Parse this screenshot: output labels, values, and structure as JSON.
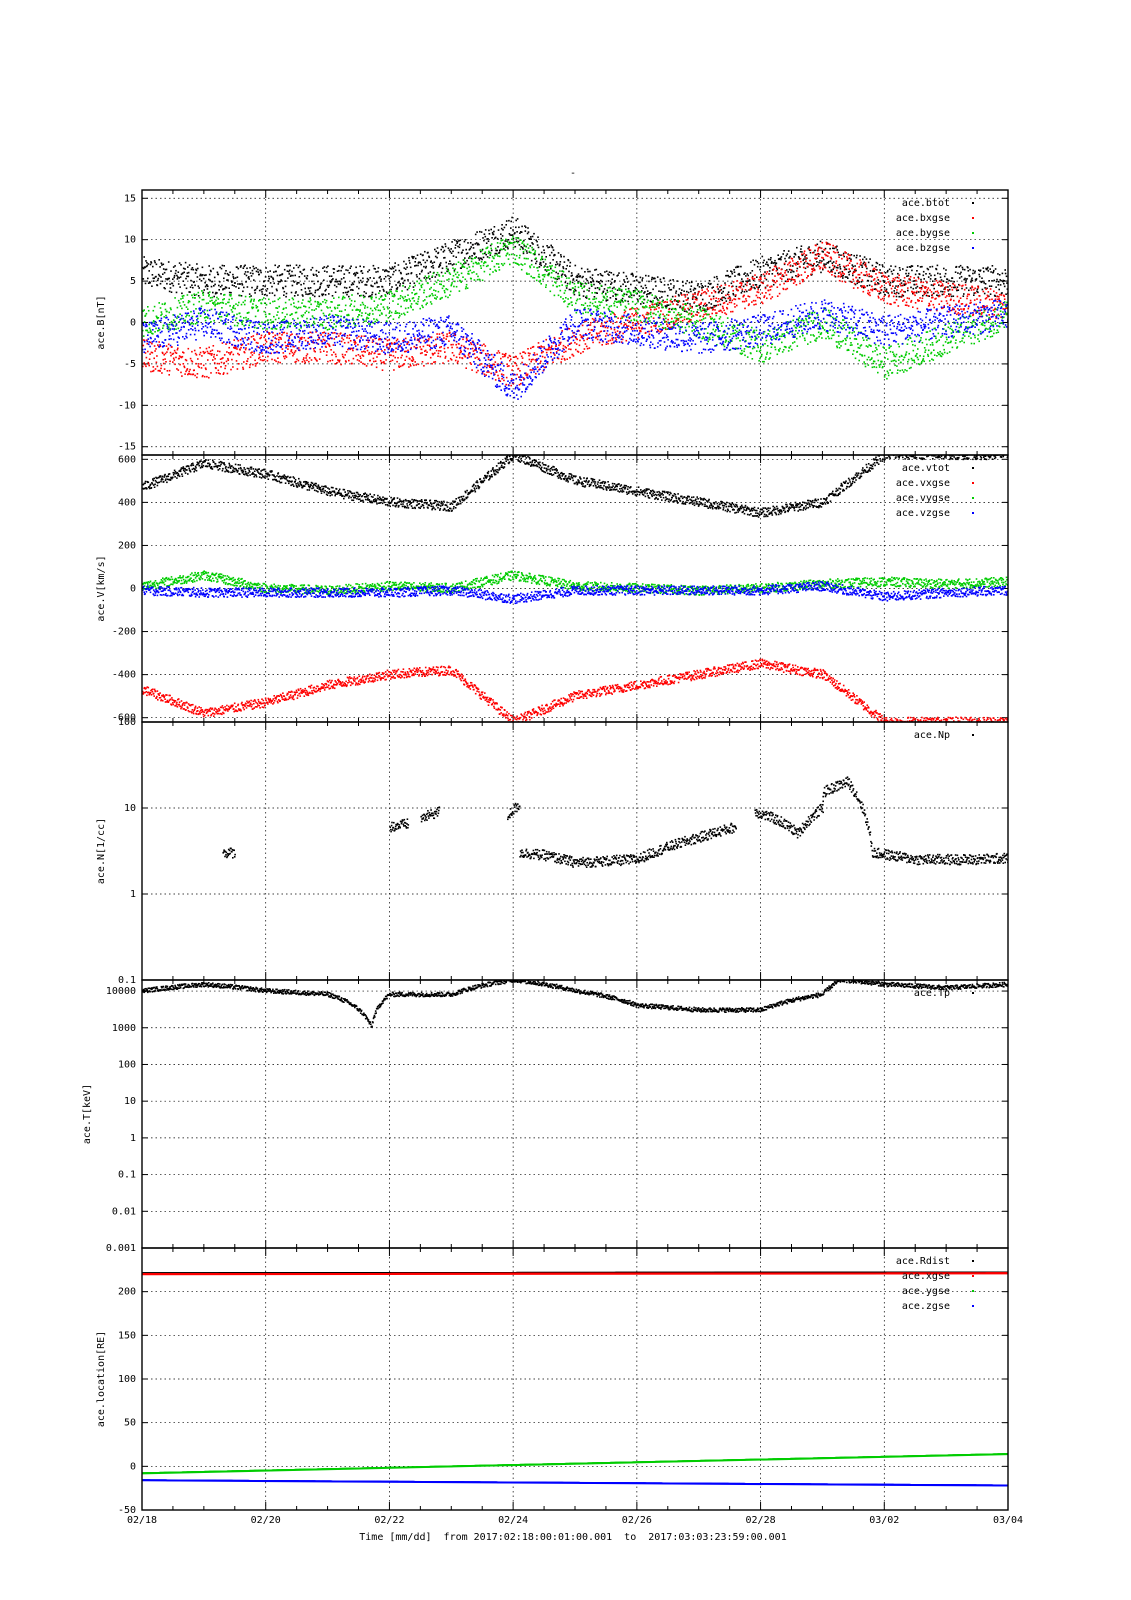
{
  "figure": {
    "title": "-",
    "xlabel": "Time [mm/dd]  from 2017:02:18:00:01:00.001  to  2017:03:03:23:59:00.001",
    "x_tick_labels": [
      "02/18",
      "02/20",
      "02/22",
      "02/24",
      "02/26",
      "02/28",
      "03/02",
      "03/04"
    ]
  },
  "chart_data": [
    {
      "type": "scatter",
      "ylabel": "ace.B[nT]",
      "ylim": [
        -16,
        16
      ],
      "yscale": "linear",
      "y_ticks": [
        -15,
        -10,
        -5,
        0,
        5,
        10,
        15
      ],
      "y_tick_labels": [
        "-15",
        "-10",
        "-5",
        "0",
        "5",
        "10",
        "15"
      ],
      "legend_position": "top-right",
      "x": [
        "02/18",
        "02/19",
        "02/20",
        "02/21",
        "02/22",
        "02/23",
        "02/24",
        "02/25",
        "02/26",
        "02/27",
        "02/28",
        "03/01",
        "03/02",
        "03/03",
        "03/04"
      ],
      "series": [
        {
          "name": "ace.btot",
          "color": "#000000",
          "values": [
            6,
            5,
            5,
            5,
            5,
            8,
            11,
            5,
            4,
            3,
            6,
            8,
            5,
            5,
            5
          ]
        },
        {
          "name": "ace.bxgse",
          "color": "#ff0000",
          "values": [
            -4,
            -5,
            -3,
            -3,
            -4,
            -3,
            -6,
            -2,
            0,
            2,
            4,
            8,
            4,
            3,
            2
          ]
        },
        {
          "name": "ace.bygse",
          "color": "#00cc00",
          "values": [
            0,
            2,
            1,
            1,
            2,
            5,
            9,
            3,
            2,
            0,
            -3,
            0,
            -5,
            -2,
            1
          ]
        },
        {
          "name": "ace.bzgse",
          "color": "#0000ff",
          "values": [
            -2,
            0,
            -2,
            -1,
            -2,
            -1,
            -8,
            0,
            -1,
            -2,
            -1,
            1,
            -1,
            0,
            1
          ]
        }
      ]
    },
    {
      "type": "scatter",
      "ylabel": "ace.V[km/s]",
      "ylim": [
        -620,
        620
      ],
      "yscale": "linear",
      "y_ticks": [
        -600,
        -400,
        -200,
        0,
        200,
        400,
        600
      ],
      "y_tick_labels": [
        "-600",
        "-400",
        "-200",
        "0",
        "200",
        "400",
        "600"
      ],
      "legend_position": "top-right",
      "x": [
        "02/18",
        "02/19",
        "02/20",
        "02/21",
        "02/22",
        "02/23",
        "02/24",
        "02/25",
        "02/26",
        "02/27",
        "02/28",
        "03/01",
        "03/02",
        "03/03",
        "03/04"
      ],
      "series": [
        {
          "name": "ace.vtot",
          "color": "#000000",
          "values": [
            470,
            580,
            530,
            450,
            400,
            380,
            620,
            500,
            450,
            400,
            350,
            400,
            620,
            620,
            620
          ]
        },
        {
          "name": "ace.vxgse",
          "color": "#ff0000",
          "values": [
            -470,
            -580,
            -530,
            -450,
            -400,
            -380,
            -620,
            -500,
            -450,
            -400,
            -350,
            -400,
            -620,
            -620,
            -620
          ]
        },
        {
          "name": "ace.vygse",
          "color": "#00cc00",
          "values": [
            10,
            60,
            0,
            -10,
            10,
            0,
            60,
            10,
            0,
            -10,
            0,
            20,
            30,
            20,
            30
          ]
        },
        {
          "name": "ace.vzgse",
          "color": "#0000ff",
          "values": [
            -10,
            -20,
            -20,
            -20,
            -20,
            -10,
            -50,
            -10,
            -10,
            -10,
            -10,
            10,
            -40,
            -20,
            -10
          ]
        }
      ]
    },
    {
      "type": "scatter",
      "ylabel": "ace.N[1/cc]",
      "ylim": [
        0.1,
        100
      ],
      "yscale": "log",
      "y_ticks": [
        0.1,
        1,
        10,
        100
      ],
      "y_tick_labels": [
        "0.1",
        "1",
        "10",
        "100"
      ],
      "legend_position": "top-right",
      "series": [
        {
          "name": "ace.Np",
          "color": "#000000",
          "segments": [
            {
              "x": [
                "02/19.3",
                "02/19.5"
              ],
              "values": [
                3,
                3
              ]
            },
            {
              "x": [
                "02/22.0",
                "02/22.3"
              ],
              "values": [
                6,
                6.5
              ]
            },
            {
              "x": [
                "02/22.5",
                "02/22.8"
              ],
              "values": [
                7.5,
                9
              ]
            },
            {
              "x": [
                "02/23.9",
                "02/24.1"
              ],
              "values": [
                8,
                11
              ]
            },
            {
              "x": [
                "02/24.1",
                "02/24.5",
                "02/25.0",
                "02/25.5",
                "02/26.0",
                "02/26.5",
                "02/27.0",
                "02/27.6"
              ],
              "values": [
                3,
                2.8,
                2.3,
                2.4,
                2.5,
                3.5,
                4.5,
                6
              ]
            },
            {
              "x": [
                "02/27.9",
                "02/28.3",
                "02/28.6",
                "02/29.0",
                "03/01.0",
                "03/01.4",
                "03/01.8",
                "03/02.5",
                "03/03.5",
                "03/04"
              ],
              "values": [
                9,
                7,
                5,
                10,
                15,
                20,
                3,
                2.5,
                2.5,
                2.6
              ]
            }
          ]
        }
      ]
    },
    {
      "type": "scatter",
      "ylabel": "ace.T[keV]",
      "ylim": [
        0.001,
        20000
      ],
      "yscale": "log",
      "y_ticks": [
        0.001,
        0.01,
        0.1,
        1,
        10,
        100,
        1000,
        10000
      ],
      "y_tick_labels": [
        "0.001",
        "0.01",
        "0.1",
        "1",
        "10",
        "100",
        "1000",
        "10000"
      ],
      "legend_position": "top-right",
      "x": [
        "02/18",
        "02/19",
        "02/20",
        "02/21",
        "02/21.7",
        "02/22",
        "02/23",
        "02/24",
        "02/25",
        "02/26",
        "02/27",
        "02/28",
        "03/01",
        "03/01.3",
        "03/02",
        "03/03",
        "03/04"
      ],
      "series": [
        {
          "name": "ace.Tp",
          "color": "#000000",
          "values": [
            10000,
            15000,
            10000,
            8000,
            1000,
            8000,
            8000,
            20000,
            10000,
            4000,
            3000,
            3000,
            8000,
            20000,
            15000,
            12000,
            15000
          ]
        }
      ]
    },
    {
      "type": "scatter",
      "ylabel": "ace.location[RE]",
      "ylim": [
        -50,
        250
      ],
      "yscale": "linear",
      "y_ticks": [
        -50,
        0,
        50,
        100,
        150,
        200
      ],
      "y_tick_labels": [
        "-50",
        "0",
        "50",
        "100",
        "150",
        "200"
      ],
      "legend_position": "top-right",
      "x": [
        "02/18",
        "03/04"
      ],
      "series": [
        {
          "name": "ace.Rdist",
          "color": "#000000",
          "values": [
            221,
            222
          ]
        },
        {
          "name": "ace.xgse",
          "color": "#ff0000",
          "values": [
            220,
            221
          ]
        },
        {
          "name": "ace.ygse",
          "color": "#00cc00",
          "values": [
            -8,
            14
          ]
        },
        {
          "name": "ace.zgse",
          "color": "#0000ff",
          "values": [
            -16,
            -22
          ]
        }
      ]
    }
  ]
}
